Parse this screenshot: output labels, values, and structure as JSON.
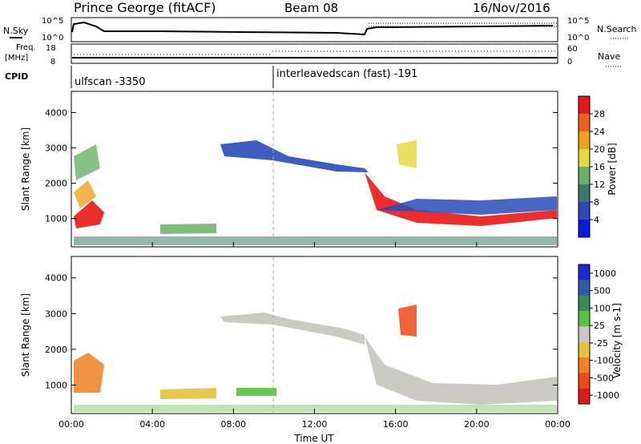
{
  "header": {
    "station": "Prince George (fitACF)",
    "beam": "Beam 08",
    "date": "16/Nov/2016"
  },
  "strips": {
    "nsky_label": "N.Sky",
    "nsky_ticks": [
      "10^5",
      "10^0"
    ],
    "nsearch_label": "N.Search",
    "nsearch_ticks": [
      "10^5",
      "10^0"
    ],
    "freq_label_1": "Freq.",
    "freq_label_2": "[MHz]",
    "freq_ticks": [
      "18",
      "8"
    ],
    "nave_label": "Nave",
    "nave_ticks": [
      "60",
      "0"
    ],
    "cpid_label": "CPID",
    "cpid_1": "ulfscan -3350",
    "cpid_2": "interleavedscan (fast) -191"
  },
  "chart_data": [
    {
      "type": "heatmap",
      "title": "Power",
      "ylabel": "Slant Range [km]",
      "xlabel": "",
      "ylim": [
        200,
        4600
      ],
      "yticks": [
        "1000",
        "2000",
        "3000",
        "4000"
      ],
      "colorbar_label": "Power [dB]",
      "colorbar_ticks": [
        "4",
        "8",
        "12",
        "16",
        "20",
        "24",
        "28"
      ],
      "colorbar_colors": [
        "#0a1adc",
        "#2a4ab8",
        "#3a7a6a",
        "#6ab06a",
        "#e6d840",
        "#f0a020",
        "#f06018",
        "#e81818"
      ]
    },
    {
      "type": "heatmap",
      "title": "Velocity",
      "ylabel": "Slant Range [km]",
      "xlabel": "Time UT",
      "ylim": [
        200,
        4600
      ],
      "yticks": [
        "1000",
        "2000",
        "3000",
        "4000"
      ],
      "xticks": [
        "00:00",
        "04:00",
        "08:00",
        "12:00",
        "16:00",
        "20:00",
        "00:00"
      ],
      "colorbar_label": "Velocity [m s-1]",
      "colorbar_ticks": [
        "1000",
        "500",
        "100",
        "25",
        "-25",
        "-100",
        "-500",
        "-1000"
      ],
      "colorbar_colors": [
        "#1a2ad0",
        "#2e5aa8",
        "#3a8a5a",
        "#5ac040",
        "#c8c8c0",
        "#e8c040",
        "#f08020",
        "#f04818",
        "#e01818"
      ]
    }
  ]
}
